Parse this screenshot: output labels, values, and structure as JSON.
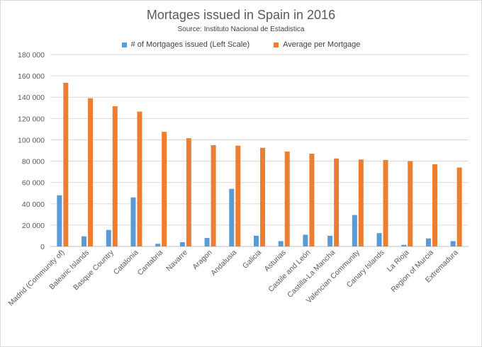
{
  "chart_data": {
    "type": "bar",
    "title": "Mortages issued in Spain in 2016",
    "subtitle": "Source: Instituto Nacional de Estadistica",
    "categories": [
      "Madrid (Community of)",
      "Balearic Islands",
      "Basque Country",
      "Catalonia",
      "Cantabria",
      "Navarre",
      "Aragon",
      "Andalusia",
      "Galicia",
      "Asturias",
      "Castile and León",
      "Castilla-La Mancha",
      "Valencian Community",
      "Canary Islands",
      "La Rioja",
      "Region of Murcia",
      "Extremadura"
    ],
    "series": [
      {
        "name": "# of Mortgages issued (Left Scale)",
        "color": "#5b9bd5",
        "values": [
          48000,
          9500,
          15500,
          46000,
          2500,
          4000,
          8000,
          54000,
          10000,
          5000,
          11000,
          10000,
          29500,
          12500,
          1500,
          7500,
          5000
        ]
      },
      {
        "name": "Average per Mortgage",
        "color": "#ed7d31",
        "values": [
          153500,
          139000,
          131500,
          126500,
          107500,
          101500,
          95000,
          94500,
          92500,
          89000,
          87000,
          82500,
          81500,
          81000,
          80000,
          77000,
          74000
        ]
      }
    ],
    "ylim": [
      0,
      180000
    ],
    "yticks": [
      0,
      20000,
      40000,
      60000,
      80000,
      100000,
      120000,
      140000,
      160000,
      180000
    ],
    "ytick_labels": [
      "0",
      "20 000",
      "40 000",
      "60 000",
      "80 000",
      "100 000",
      "120 000",
      "140 000",
      "160 000",
      "180 000"
    ],
    "grid": true,
    "legend_position": "top"
  }
}
